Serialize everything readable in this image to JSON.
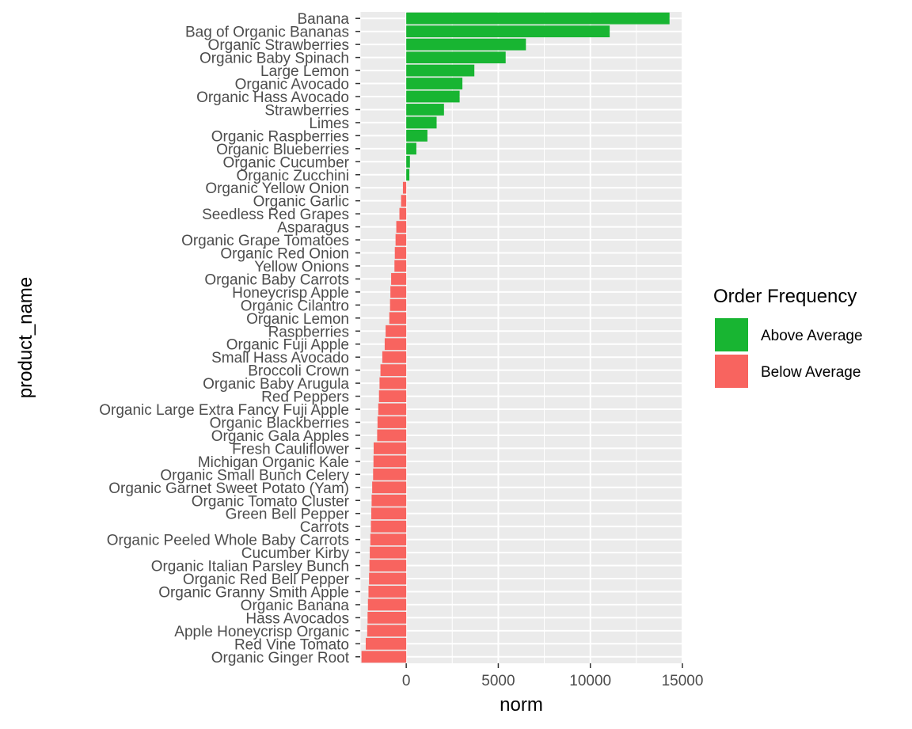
{
  "chart_data": {
    "type": "bar",
    "orientation": "horizontal",
    "xlabel": "norm",
    "ylabel": "product_name",
    "xlim": [
      -2500,
      15000
    ],
    "x_ticks": [
      0,
      5000,
      10000,
      15000
    ],
    "x_tick_labels": [
      "0",
      "5000",
      "10000",
      "15000"
    ],
    "grid": true,
    "legend": {
      "title": "Order Frequency",
      "placement": "right",
      "entries": [
        {
          "label": "Above Average",
          "color": "#18b532"
        },
        {
          "label": "Below Average",
          "color": "#f8645f"
        }
      ]
    },
    "colors": {
      "above": "#18b532",
      "below": "#f8645f",
      "panel_background": "#ebebeb",
      "gridline": "#ffffff"
    },
    "categories": [
      "Banana",
      "Bag of Organic Bananas",
      "Organic Strawberries",
      "Organic Baby Spinach",
      "Large Lemon",
      "Organic Avocado",
      "Organic Hass Avocado",
      "Strawberries",
      "Limes",
      "Organic Raspberries",
      "Organic Blueberries",
      "Organic Cucumber",
      "Organic Zucchini",
      "Organic Yellow Onion",
      "Organic Garlic",
      "Seedless Red Grapes",
      "Asparagus",
      "Organic Grape Tomatoes",
      "Organic Red Onion",
      "Yellow Onions",
      "Organic Baby Carrots",
      "Honeycrisp Apple",
      "Organic Cilantro",
      "Organic Lemon",
      "Raspberries",
      "Organic Fuji Apple",
      "Small Hass Avocado",
      "Broccoli Crown",
      "Organic Baby Arugula",
      "Red Peppers",
      "Organic Large Extra Fancy Fuji Apple",
      "Organic Blackberries",
      "Organic Gala Apples",
      "Fresh Cauliflower",
      "Michigan Organic Kale",
      "Organic Small Bunch Celery",
      "Organic Garnet Sweet Potato (Yam)",
      "Organic Tomato Cluster",
      "Green Bell Pepper",
      "Carrots",
      "Organic Peeled Whole Baby Carrots",
      "Cucumber Kirby",
      "Organic Italian Parsley Bunch",
      "Organic Red Bell Pepper",
      "Organic Granny Smith Apple",
      "Organic Banana",
      "Hass Avocados",
      "Apple Honeycrisp Organic",
      "Red Vine Tomato",
      "Organic Ginger Root"
    ],
    "values": [
      14300,
      11050,
      6500,
      5400,
      3700,
      3050,
      2900,
      2050,
      1650,
      1150,
      550,
      200,
      170,
      -180,
      -280,
      -370,
      -540,
      -580,
      -620,
      -640,
      -820,
      -860,
      -880,
      -920,
      -1120,
      -1170,
      -1300,
      -1400,
      -1450,
      -1480,
      -1520,
      -1560,
      -1580,
      -1770,
      -1780,
      -1800,
      -1850,
      -1880,
      -1900,
      -1920,
      -1950,
      -1980,
      -2000,
      -2020,
      -2050,
      -2080,
      -2100,
      -2120,
      -2200,
      -2430
    ],
    "groups": [
      "Above Average",
      "Above Average",
      "Above Average",
      "Above Average",
      "Above Average",
      "Above Average",
      "Above Average",
      "Above Average",
      "Above Average",
      "Above Average",
      "Above Average",
      "Above Average",
      "Above Average",
      "Below Average",
      "Below Average",
      "Below Average",
      "Below Average",
      "Below Average",
      "Below Average",
      "Below Average",
      "Below Average",
      "Below Average",
      "Below Average",
      "Below Average",
      "Below Average",
      "Below Average",
      "Below Average",
      "Below Average",
      "Below Average",
      "Below Average",
      "Below Average",
      "Below Average",
      "Below Average",
      "Below Average",
      "Below Average",
      "Below Average",
      "Below Average",
      "Below Average",
      "Below Average",
      "Below Average",
      "Below Average",
      "Below Average",
      "Below Average",
      "Below Average",
      "Below Average",
      "Below Average",
      "Below Average",
      "Below Average",
      "Below Average",
      "Below Average"
    ]
  }
}
